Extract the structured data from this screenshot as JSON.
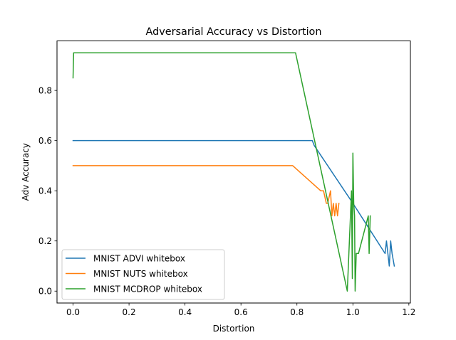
{
  "chart_data": {
    "type": "line",
    "title": "Adversarial Accuracy vs Distortion",
    "xlabel": "Distortion",
    "ylabel": "Adv Accuracy",
    "xlim": [
      -0.0574,
      1.2055
    ],
    "ylim": [
      -0.0475,
      0.9975
    ],
    "xticks": [
      0.0,
      0.2,
      0.4,
      0.6,
      0.8,
      1.0,
      1.2
    ],
    "xtick_labels": [
      "0.0",
      "0.2",
      "0.4",
      "0.6",
      "0.8",
      "1.0",
      "1.2"
    ],
    "yticks": [
      0.0,
      0.2,
      0.4,
      0.6,
      0.8
    ],
    "ytick_labels": [
      "0.0",
      "0.2",
      "0.4",
      "0.6",
      "0.8"
    ],
    "grid": false,
    "legend_position": "lower-left",
    "series": [
      {
        "name": "MNIST ADVI whitebox",
        "color": "#1f77b4",
        "x": [
          0.0,
          0.005,
          0.855,
          0.862,
          1.0,
          1.115,
          1.12,
          1.125,
          1.13,
          1.135,
          1.14,
          1.148
        ],
        "y": [
          0.6,
          0.6,
          0.6,
          0.58,
          0.35,
          0.15,
          0.2,
          0.15,
          0.1,
          0.2,
          0.15,
          0.1
        ]
      },
      {
        "name": "MNIST NUTS whitebox",
        "color": "#ff7f0e",
        "x": [
          0.0,
          0.005,
          0.785,
          0.885,
          0.895,
          0.905,
          0.91,
          0.92,
          0.925,
          0.93,
          0.935,
          0.94,
          0.945,
          0.95
        ],
        "y": [
          0.5,
          0.5,
          0.5,
          0.4,
          0.4,
          0.35,
          0.35,
          0.4,
          0.3,
          0.35,
          0.3,
          0.35,
          0.3,
          0.35
        ]
      },
      {
        "name": "MNIST MCDROP whitebox",
        "color": "#2ca02c",
        "x": [
          0.0,
          0.002,
          0.795,
          0.98,
          0.995,
          0.998,
          1.0,
          1.003,
          1.006,
          1.008,
          1.012,
          1.02,
          1.055,
          1.058,
          1.062
        ],
        "y": [
          0.85,
          0.95,
          0.95,
          0.0,
          0.4,
          0.05,
          0.55,
          0.35,
          0.3,
          0.0,
          0.15,
          0.15,
          0.3,
          0.15,
          0.3
        ]
      }
    ]
  }
}
